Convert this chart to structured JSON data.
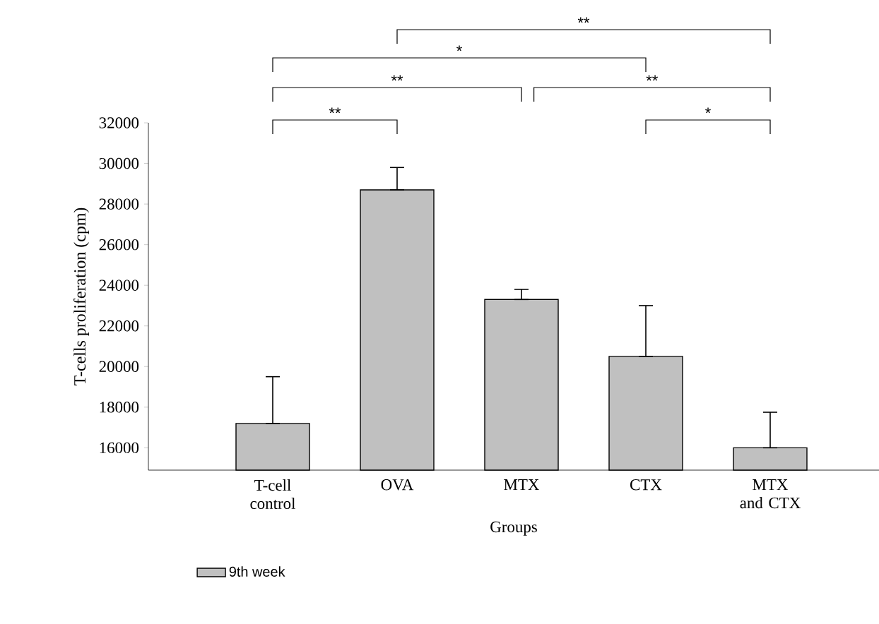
{
  "chart_data": {
    "type": "bar",
    "categories": [
      "T-cell control",
      "OVA",
      "MTX",
      "CTX",
      "MTX and CTX"
    ],
    "series": [
      {
        "name": "9th week",
        "color": "#c0c0c0",
        "values": [
          17200,
          28700,
          23300,
          20500,
          16000
        ],
        "errors": [
          [
            17200,
            19500
          ],
          [
            28700,
            29800
          ],
          [
            23300,
            23800
          ],
          [
            20500,
            23000
          ],
          [
            16000,
            17750
          ]
        ]
      }
    ],
    "xlabel": "Groups",
    "ylabel": "T-cells proliferation (cpm)",
    "ylim": [
      14900,
      32000
    ],
    "yticks": [
      16000,
      18000,
      20000,
      22000,
      24000,
      26000,
      28000,
      30000,
      32000
    ],
    "annotations": [
      "**",
      "*",
      "**",
      "**",
      "**",
      "*"
    ],
    "legend": "bottom left"
  }
}
